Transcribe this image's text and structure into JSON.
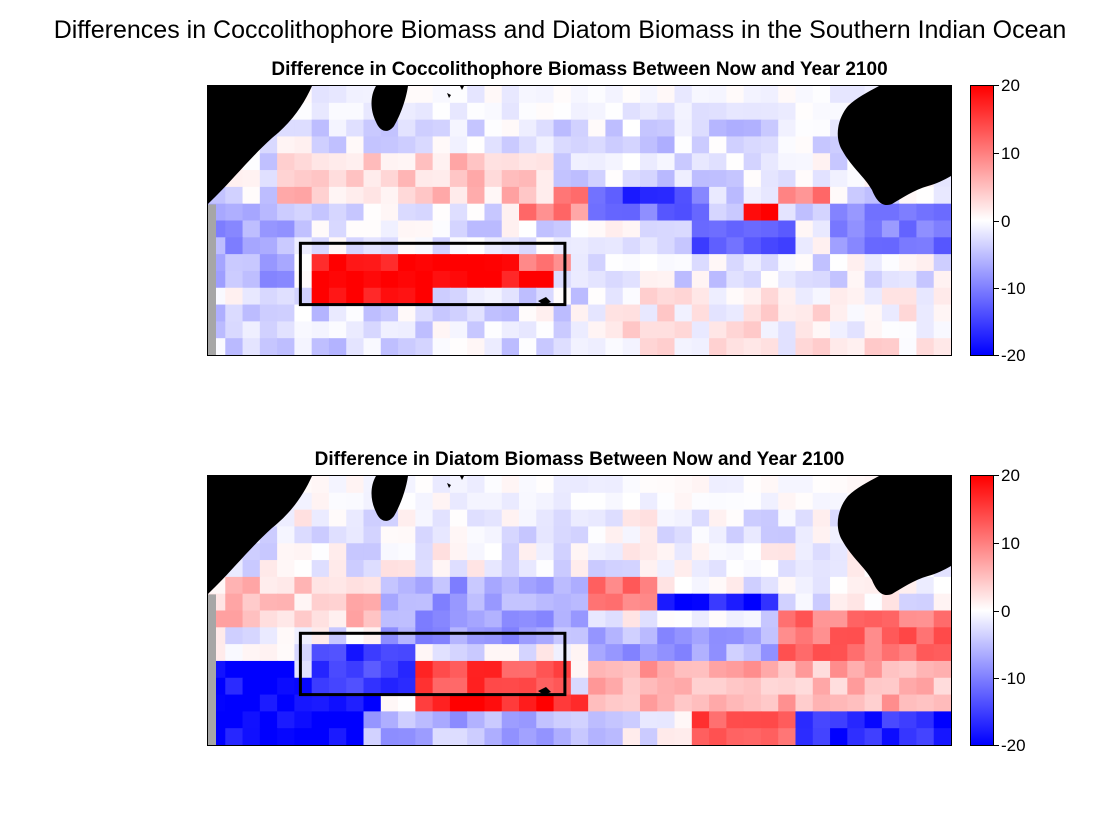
{
  "figure": {
    "suptitle": "Differences in Coccolithophore Biomass and Diatom Biomass in the Southern Indian Ocean"
  },
  "colormap": {
    "high": "#ff0000",
    "mid": "#ffffff",
    "low": "#0000ff",
    "land": "#000000",
    "missing": "#a6a6a6",
    "box": "#000000"
  },
  "chart_data": [
    {
      "type": "heatmap",
      "title": "Difference in Coccolithophore Biomass Between Now and Year 2100",
      "clim": [
        -20,
        20
      ],
      "colorbar_ticks": [
        "20",
        "10",
        "0",
        "-10",
        "-20"
      ],
      "grid": {
        "cols": 43,
        "rows": 16
      },
      "highlight_box": {
        "col_start": 5,
        "col_end": 21,
        "row_start": 9,
        "row_end": 13
      },
      "features": [
        {
          "kind": "uniform",
          "value": -2
        },
        {
          "kind": "rect",
          "c0": 6,
          "c1": 20,
          "r0": 10,
          "r1": 12,
          "value": 20
        },
        {
          "kind": "rect",
          "c0": 6,
          "c1": 13,
          "r0": 12,
          "r1": 13,
          "value": 20
        },
        {
          "kind": "rect",
          "c0": 18,
          "c1": 21,
          "r0": 10,
          "r1": 11,
          "value": 12
        },
        {
          "kind": "rect",
          "c0": 18,
          "c1": 22,
          "r0": 6,
          "r1": 8,
          "value": 9
        },
        {
          "kind": "rect",
          "c0": 22,
          "c1": 29,
          "r0": 6,
          "r1": 8,
          "value": -11
        },
        {
          "kind": "rect",
          "c0": 24,
          "c1": 27,
          "r0": 6,
          "r1": 7,
          "value": -20
        },
        {
          "kind": "rect",
          "c0": 28,
          "c1": 34,
          "r0": 8,
          "r1": 10,
          "value": -13
        },
        {
          "kind": "rect",
          "c0": 31,
          "c1": 33,
          "r0": 7,
          "r1": 8,
          "value": 20
        },
        {
          "kind": "rect",
          "c0": 33,
          "c1": 36,
          "r0": 6,
          "r1": 7,
          "value": 9
        },
        {
          "kind": "rect",
          "c0": 36,
          "c1": 43,
          "r0": 7,
          "r1": 10,
          "value": -10
        },
        {
          "kind": "rect",
          "c0": 0,
          "c1": 5,
          "r0": 7,
          "r1": 12,
          "value": -7
        },
        {
          "kind": "rect",
          "c0": 0,
          "c1": 9,
          "r0": 13,
          "r1": 16,
          "value": -3
        },
        {
          "kind": "rect",
          "c0": 4,
          "c1": 20,
          "r0": 4,
          "r1": 7,
          "value": 4
        },
        {
          "kind": "rect",
          "c0": 22,
          "c1": 43,
          "r0": 12,
          "r1": 16,
          "value": 1
        },
        {
          "kind": "rect",
          "c0": 24,
          "c1": 36,
          "r0": 1,
          "r1": 4,
          "value": -3
        }
      ]
    },
    {
      "type": "heatmap",
      "title": "Difference in Diatom Biomass Between Now and Year 2100",
      "clim": [
        -20,
        20
      ],
      "colorbar_ticks": [
        "20",
        "10",
        "0",
        "-10",
        "-20"
      ],
      "grid": {
        "cols": 43,
        "rows": 16
      },
      "highlight_box": {
        "col_start": 5,
        "col_end": 21,
        "row_start": 9,
        "row_end": 13
      },
      "features": [
        {
          "kind": "uniform",
          "value": -1
        },
        {
          "kind": "rect",
          "c0": 0,
          "c1": 10,
          "r0": 6,
          "r1": 9,
          "value": 4
        },
        {
          "kind": "rect",
          "c0": 10,
          "c1": 22,
          "r0": 6,
          "r1": 10,
          "value": -7
        },
        {
          "kind": "rect",
          "c0": 0,
          "c1": 5,
          "r0": 11,
          "r1": 16,
          "value": -20
        },
        {
          "kind": "rect",
          "c0": 4,
          "c1": 10,
          "r0": 12,
          "r1": 16,
          "value": -20
        },
        {
          "kind": "rect",
          "c0": 6,
          "c1": 12,
          "r0": 10,
          "r1": 13,
          "value": -15
        },
        {
          "kind": "rect",
          "c0": 12,
          "c1": 21,
          "r0": 11,
          "r1": 13,
          "value": 14
        },
        {
          "kind": "rect",
          "c0": 12,
          "c1": 22,
          "r0": 13,
          "r1": 14,
          "value": 18
        },
        {
          "kind": "rect",
          "c0": 22,
          "c1": 26,
          "r0": 6,
          "r1": 8,
          "value": 12
        },
        {
          "kind": "rect",
          "c0": 26,
          "c1": 33,
          "r0": 7,
          "r1": 8,
          "value": -18
        },
        {
          "kind": "rect",
          "c0": 22,
          "c1": 34,
          "r0": 9,
          "r1": 11,
          "value": -7
        },
        {
          "kind": "rect",
          "c0": 33,
          "c1": 43,
          "r0": 8,
          "r1": 12,
          "value": 11
        },
        {
          "kind": "rect",
          "c0": 22,
          "c1": 43,
          "r0": 11,
          "r1": 14,
          "value": 6
        },
        {
          "kind": "rect",
          "c0": 28,
          "c1": 34,
          "r0": 14,
          "r1": 16,
          "value": 14
        },
        {
          "kind": "rect",
          "c0": 34,
          "c1": 43,
          "r0": 14,
          "r1": 16,
          "value": -17
        },
        {
          "kind": "rect",
          "c0": 9,
          "c1": 24,
          "r0": 14,
          "r1": 16,
          "value": -6
        }
      ]
    }
  ]
}
